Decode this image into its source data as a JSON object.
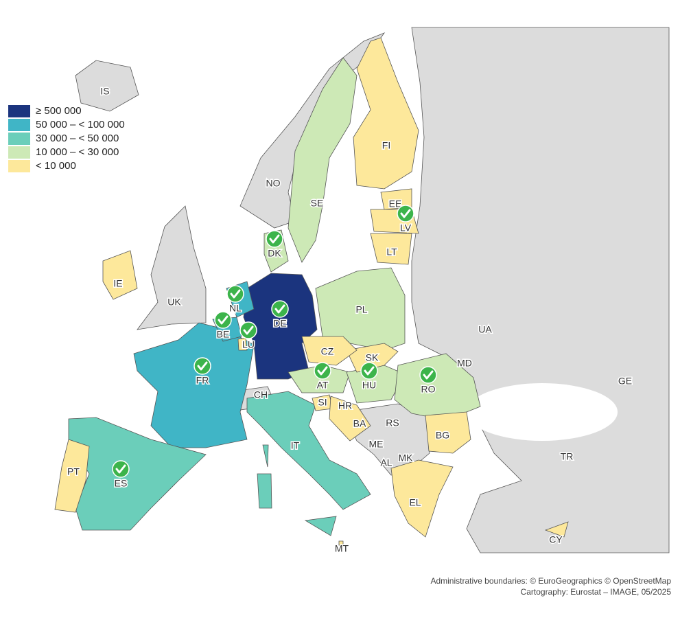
{
  "legend": {
    "classes": [
      {
        "label": "≥ 500 000",
        "color": "#1b347e"
      },
      {
        "label": "50 000 – < 100 000",
        "color": "#40b5c6"
      },
      {
        "label": "30 000 – < 50 000",
        "color": "#6bceba"
      },
      {
        "label": "10 000 – < 30 000",
        "color": "#cde9b6"
      },
      {
        "label": "< 10 000",
        "color": "#fde89b"
      }
    ]
  },
  "countries": [
    {
      "code": "DE",
      "class": 0,
      "check": true
    },
    {
      "code": "FR",
      "class": 1,
      "check": true
    },
    {
      "code": "NL",
      "class": 1,
      "check": true
    },
    {
      "code": "BE",
      "class": 1,
      "check": true
    },
    {
      "code": "LU",
      "class": 4,
      "check": true
    },
    {
      "code": "ES",
      "class": 2,
      "check": true
    },
    {
      "code": "IT",
      "class": 2,
      "check": false
    },
    {
      "code": "DK",
      "class": 3,
      "check": true
    },
    {
      "code": "SE",
      "class": 3,
      "check": false
    },
    {
      "code": "PL",
      "class": 3,
      "check": false
    },
    {
      "code": "AT",
      "class": 3,
      "check": true
    },
    {
      "code": "HU",
      "class": 3,
      "check": true
    },
    {
      "code": "RO",
      "class": 3,
      "check": true
    },
    {
      "code": "SK",
      "class": 4,
      "check": false
    },
    {
      "code": "CZ",
      "class": 4,
      "check": false
    },
    {
      "code": "FI",
      "class": 4,
      "check": false
    },
    {
      "code": "EE",
      "class": 4,
      "check": false
    },
    {
      "code": "LV",
      "class": 4,
      "check": true
    },
    {
      "code": "LT",
      "class": 4,
      "check": false
    },
    {
      "code": "IE",
      "class": 4,
      "check": false
    },
    {
      "code": "PT",
      "class": 4,
      "check": false
    },
    {
      "code": "SI",
      "class": 4,
      "check": false
    },
    {
      "code": "HR",
      "class": 4,
      "check": false
    },
    {
      "code": "BG",
      "class": 4,
      "check": false
    },
    {
      "code": "EL",
      "class": 4,
      "check": false
    },
    {
      "code": "CY",
      "class": 4,
      "check": false
    },
    {
      "code": "MT",
      "class": 4,
      "check": false
    }
  ],
  "non_eu": [
    "IS",
    "NO",
    "UK",
    "CH",
    "UA",
    "MD",
    "BA",
    "RS",
    "ME",
    "AL",
    "MK",
    "TR",
    "GE"
  ],
  "credits": [
    "Administrative boundaries: © EuroGeographics © OpenStreetMap",
    "Cartography: Eurostat – IMAGE, 05/2025"
  ]
}
